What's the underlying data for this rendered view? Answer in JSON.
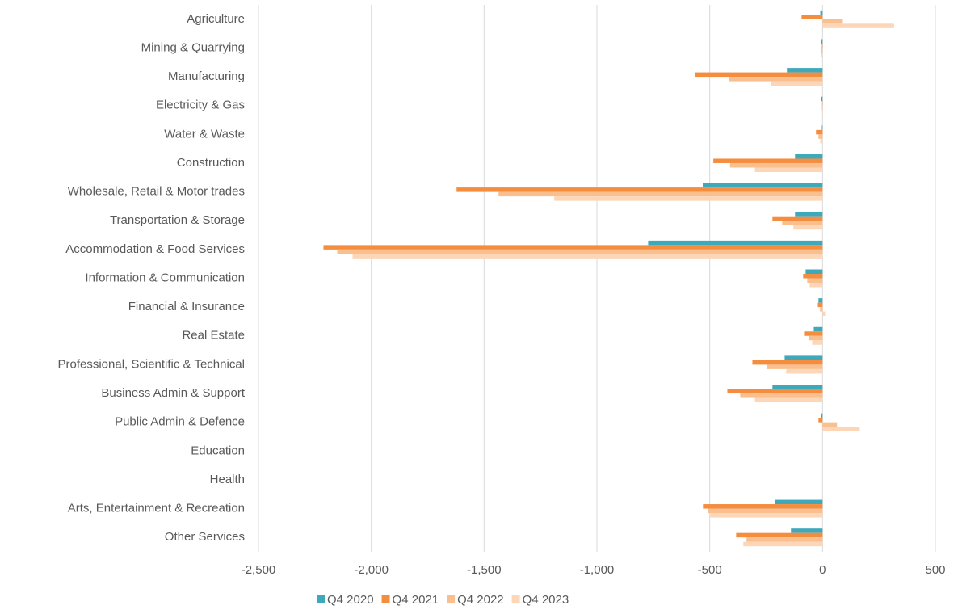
{
  "chart_data": {
    "type": "bar",
    "orientation": "horizontal",
    "categories": [
      "Agriculture",
      "Mining & Quarrying",
      "Manufacturing",
      "Electricity & Gas",
      "Water & Waste",
      "Construction",
      "Wholesale, Retail & Motor trades",
      "Transportation & Storage",
      "Accommodation & Food Services",
      "Information & Communication",
      "Financial & Insurance",
      "Real Estate",
      "Professional, Scientific & Technical",
      "Business Admin & Support",
      "Public Admin & Defence",
      "Education",
      "Health",
      "Arts, Entertainment & Recreation",
      "Other Services"
    ],
    "series": [
      {
        "name": "Q4 2020",
        "color": "#3fa9bc",
        "values": [
          -10,
          -5,
          -158,
          -5,
          -3,
          -122,
          -531,
          -122,
          -773,
          -75,
          -18,
          -39,
          -168,
          -222,
          -5,
          0,
          0,
          -211,
          -140
        ]
      },
      {
        "name": "Q4 2021",
        "color": "#f58d3f",
        "values": [
          -93,
          -3,
          -566,
          -2,
          -29,
          -484,
          -1622,
          -222,
          -2212,
          -86,
          -21,
          -82,
          -311,
          -422,
          -18,
          0,
          0,
          -530,
          -383
        ]
      },
      {
        "name": "Q4 2022",
        "color": "#f9bf8f",
        "values": [
          90,
          -5,
          -416,
          -3,
          -18,
          -410,
          -1436,
          -179,
          -2151,
          -68,
          -11,
          -61,
          -247,
          -365,
          64,
          0,
          0,
          -509,
          -337
        ]
      },
      {
        "name": "Q4 2023",
        "color": "#fcd6b6",
        "values": [
          317,
          -5,
          -230,
          -2,
          -10,
          -300,
          -1189,
          -129,
          -2083,
          -57,
          11,
          -46,
          -161,
          -300,
          165,
          0,
          0,
          -498,
          -351
        ]
      }
    ],
    "xlim": [
      -2500,
      500
    ],
    "xticks": [
      {
        "value": -2500,
        "label": "-2,500"
      },
      {
        "value": -2000,
        "label": "-2,000"
      },
      {
        "value": -1500,
        "label": "-1,500"
      },
      {
        "value": -1000,
        "label": "-1,000"
      },
      -500,
      0,
      500
    ],
    "grid": true,
    "legend": "bottom"
  }
}
